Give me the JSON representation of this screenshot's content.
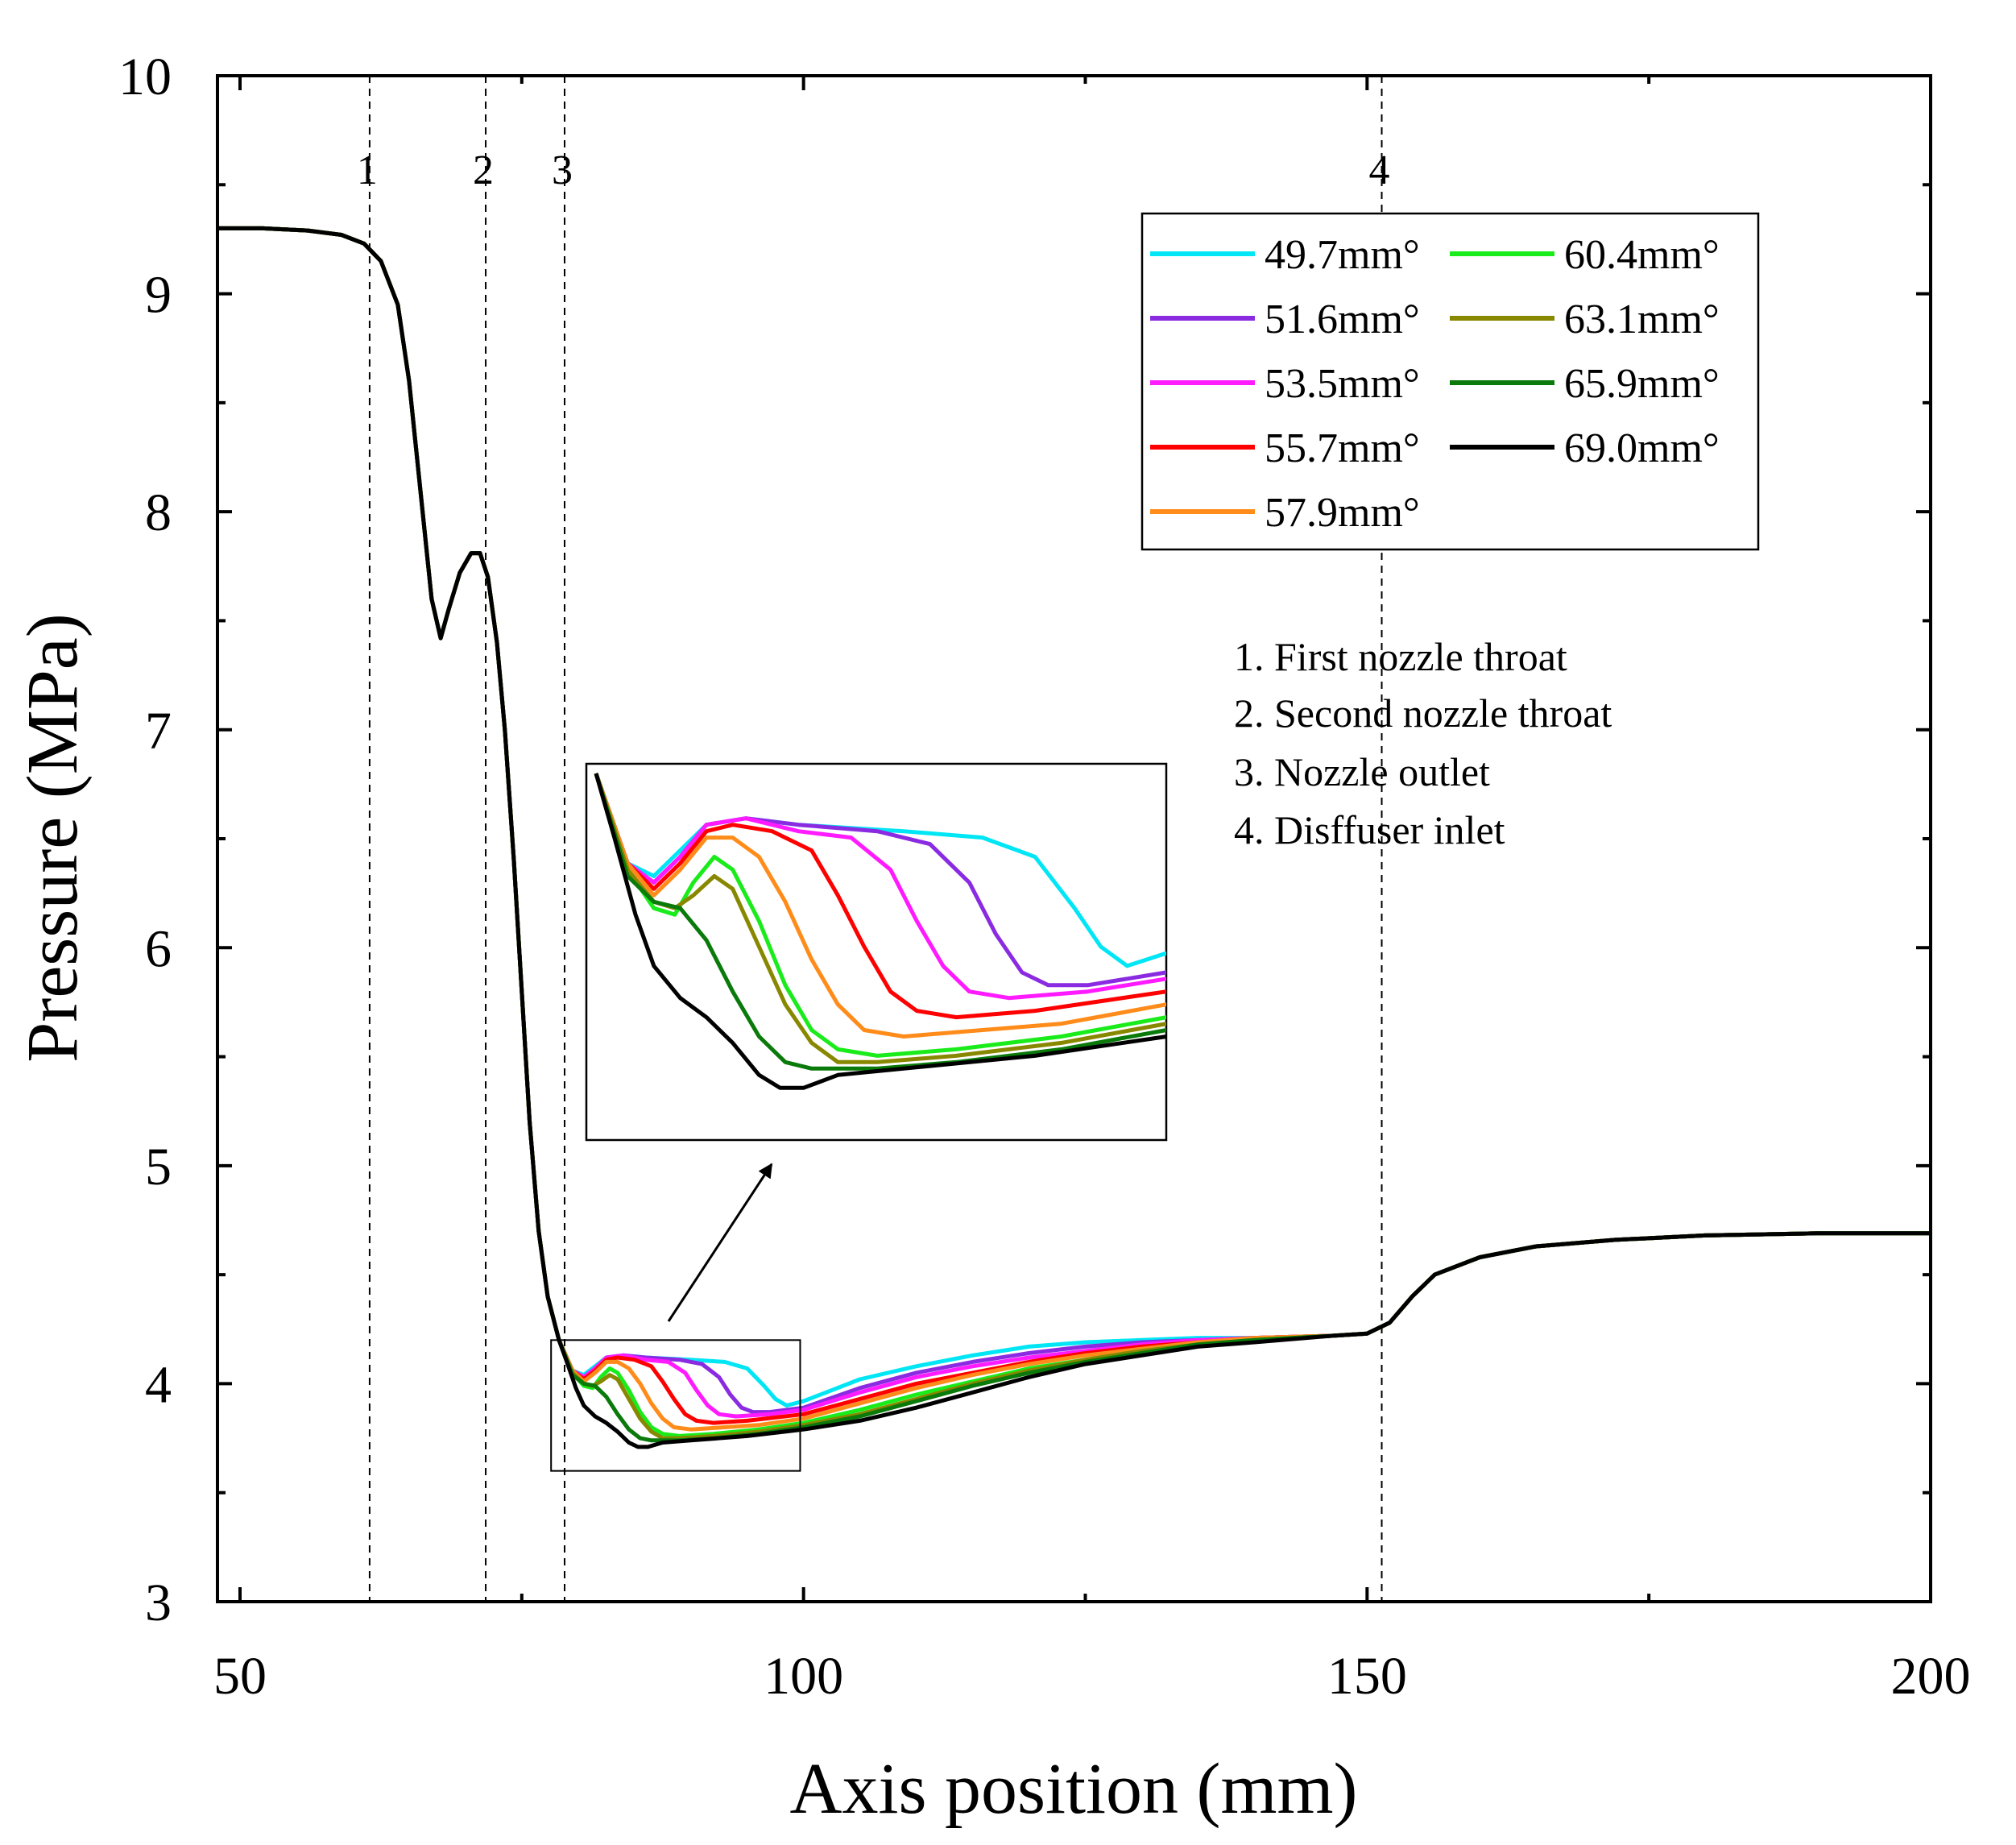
{
  "chart_data": {
    "type": "line",
    "title": "",
    "xlabel": "Axis position (mm)",
    "ylabel": "Pressure (MPa)",
    "xlim": [
      48,
      200
    ],
    "ylim": [
      3,
      10
    ],
    "xticks": [
      50,
      100,
      150,
      200
    ],
    "yticks": [
      3,
      4,
      5,
      6,
      7,
      8,
      9,
      10
    ],
    "grid": false,
    "legend_position": "top-right",
    "common_prefix": [
      [
        48,
        9.3
      ],
      [
        52,
        9.3
      ],
      [
        56,
        9.29
      ],
      [
        59,
        9.27
      ],
      [
        61,
        9.23
      ],
      [
        62.5,
        9.15
      ],
      [
        64,
        8.95
      ],
      [
        65,
        8.6
      ],
      [
        66,
        8.1
      ],
      [
        67,
        7.6
      ],
      [
        67.8,
        7.42
      ],
      [
        68.5,
        7.55
      ],
      [
        69.5,
        7.72
      ],
      [
        70.5,
        7.81
      ],
      [
        71.3,
        7.81
      ],
      [
        72,
        7.7
      ],
      [
        72.8,
        7.4
      ],
      [
        73.5,
        7.0
      ],
      [
        74.3,
        6.4
      ],
      [
        75,
        5.8
      ],
      [
        75.7,
        5.2
      ],
      [
        76.5,
        4.7
      ],
      [
        77.3,
        4.4
      ],
      [
        78.3,
        4.2
      ]
    ],
    "common_suffix": [
      [
        147,
        4.22
      ],
      [
        150,
        4.23
      ],
      [
        152,
        4.28
      ],
      [
        154,
        4.4
      ],
      [
        156,
        4.5
      ],
      [
        160,
        4.58
      ],
      [
        165,
        4.63
      ],
      [
        172,
        4.66
      ],
      [
        180,
        4.68
      ],
      [
        190,
        4.69
      ],
      [
        200,
        4.69
      ]
    ],
    "series": [
      {
        "name": "49.7mm°",
        "color": "#00e6f5",
        "points": [
          [
            78.3,
            4.2
          ],
          [
            79.5,
            4.06
          ],
          [
            80.5,
            4.04
          ],
          [
            81.5,
            4.08
          ],
          [
            82.5,
            4.12
          ],
          [
            84,
            4.13
          ],
          [
            86,
            4.12
          ],
          [
            90,
            4.11
          ],
          [
            93,
            4.1
          ],
          [
            95,
            4.07
          ],
          [
            96.5,
            3.99
          ],
          [
            97.5,
            3.93
          ],
          [
            98.5,
            3.9
          ],
          [
            100,
            3.92
          ],
          [
            105,
            4.02
          ],
          [
            110,
            4.08
          ],
          [
            115,
            4.13
          ],
          [
            120,
            4.17
          ],
          [
            125,
            4.19
          ],
          [
            130,
            4.2
          ],
          [
            135,
            4.21
          ],
          [
            140,
            4.21
          ],
          [
            147,
            4.22
          ]
        ]
      },
      {
        "name": "51.6mm°",
        "color": "#8a2be2",
        "points": [
          [
            78.3,
            4.2
          ],
          [
            79.5,
            4.06
          ],
          [
            80.5,
            4.03
          ],
          [
            81.5,
            4.07
          ],
          [
            82.5,
            4.12
          ],
          [
            84,
            4.13
          ],
          [
            86,
            4.12
          ],
          [
            89,
            4.11
          ],
          [
            91,
            4.09
          ],
          [
            92.5,
            4.03
          ],
          [
            93.5,
            3.95
          ],
          [
            94.5,
            3.89
          ],
          [
            95.5,
            3.87
          ],
          [
            97,
            3.87
          ],
          [
            100,
            3.89
          ],
          [
            105,
            3.98
          ],
          [
            110,
            4.05
          ],
          [
            115,
            4.1
          ],
          [
            120,
            4.14
          ],
          [
            125,
            4.17
          ],
          [
            130,
            4.19
          ],
          [
            135,
            4.2
          ],
          [
            140,
            4.21
          ],
          [
            147,
            4.22
          ]
        ]
      },
      {
        "name": "53.5mm°",
        "color": "#ff1aff",
        "points": [
          [
            78.3,
            4.2
          ],
          [
            79.5,
            4.06
          ],
          [
            80.5,
            4.03
          ],
          [
            81.5,
            4.07
          ],
          [
            82.5,
            4.12
          ],
          [
            84,
            4.13
          ],
          [
            86,
            4.11
          ],
          [
            88,
            4.1
          ],
          [
            89.5,
            4.05
          ],
          [
            90.5,
            3.97
          ],
          [
            91.5,
            3.9
          ],
          [
            92.5,
            3.86
          ],
          [
            94,
            3.85
          ],
          [
            97,
            3.86
          ],
          [
            100,
            3.88
          ],
          [
            105,
            3.96
          ],
          [
            110,
            4.03
          ],
          [
            115,
            4.08
          ],
          [
            120,
            4.12
          ],
          [
            125,
            4.15
          ],
          [
            130,
            4.18
          ],
          [
            135,
            4.2
          ],
          [
            140,
            4.21
          ],
          [
            147,
            4.22
          ]
        ]
      },
      {
        "name": "55.7mm°",
        "color": "#ff0000",
        "points": [
          [
            78.3,
            4.2
          ],
          [
            79.5,
            4.06
          ],
          [
            80.5,
            4.02
          ],
          [
            81.5,
            4.06
          ],
          [
            82.5,
            4.11
          ],
          [
            83.5,
            4.12
          ],
          [
            85,
            4.11
          ],
          [
            86.5,
            4.08
          ],
          [
            87.5,
            4.01
          ],
          [
            88.5,
            3.93
          ],
          [
            89.5,
            3.86
          ],
          [
            90.5,
            3.83
          ],
          [
            92,
            3.82
          ],
          [
            95,
            3.83
          ],
          [
            100,
            3.86
          ],
          [
            105,
            3.93
          ],
          [
            110,
            4.0
          ],
          [
            115,
            4.05
          ],
          [
            120,
            4.1
          ],
          [
            125,
            4.14
          ],
          [
            130,
            4.17
          ],
          [
            135,
            4.19
          ],
          [
            140,
            4.21
          ],
          [
            147,
            4.22
          ]
        ]
      },
      {
        "name": "57.9mm°",
        "color": "#ff8c1a",
        "points": [
          [
            78.3,
            4.2
          ],
          [
            79.5,
            4.06
          ],
          [
            80.5,
            4.01
          ],
          [
            81.5,
            4.05
          ],
          [
            82.5,
            4.1
          ],
          [
            83.5,
            4.1
          ],
          [
            84.5,
            4.07
          ],
          [
            85.5,
            4.0
          ],
          [
            86.5,
            3.91
          ],
          [
            87.5,
            3.84
          ],
          [
            88.5,
            3.8
          ],
          [
            90,
            3.79
          ],
          [
            93,
            3.8
          ],
          [
            96,
            3.81
          ],
          [
            100,
            3.84
          ],
          [
            105,
            3.91
          ],
          [
            110,
            3.98
          ],
          [
            115,
            4.04
          ],
          [
            120,
            4.09
          ],
          [
            125,
            4.13
          ],
          [
            130,
            4.16
          ],
          [
            135,
            4.19
          ],
          [
            140,
            4.21
          ],
          [
            147,
            4.22
          ]
        ]
      },
      {
        "name": "60.4mm°",
        "color": "#1aeb1a",
        "points": [
          [
            78.3,
            4.2
          ],
          [
            79.5,
            4.05
          ],
          [
            80.5,
            3.99
          ],
          [
            81.3,
            3.98
          ],
          [
            82,
            4.03
          ],
          [
            82.8,
            4.07
          ],
          [
            83.5,
            4.05
          ],
          [
            84.5,
            3.97
          ],
          [
            85.5,
            3.87
          ],
          [
            86.5,
            3.8
          ],
          [
            87.5,
            3.77
          ],
          [
            89,
            3.76
          ],
          [
            92,
            3.77
          ],
          [
            96,
            3.79
          ],
          [
            100,
            3.82
          ],
          [
            105,
            3.88
          ],
          [
            110,
            3.95
          ],
          [
            115,
            4.01
          ],
          [
            120,
            4.07
          ],
          [
            125,
            4.11
          ],
          [
            130,
            4.15
          ],
          [
            135,
            4.18
          ],
          [
            140,
            4.2
          ],
          [
            147,
            4.22
          ]
        ]
      },
      {
        "name": "63.1mm°",
        "color": "#888800",
        "points": [
          [
            78.3,
            4.2
          ],
          [
            79.5,
            4.05
          ],
          [
            80.5,
            4.0
          ],
          [
            81.3,
            3.99
          ],
          [
            82,
            4.01
          ],
          [
            82.8,
            4.04
          ],
          [
            83.5,
            4.02
          ],
          [
            84.5,
            3.93
          ],
          [
            85.5,
            3.84
          ],
          [
            86.5,
            3.78
          ],
          [
            87.5,
            3.75
          ],
          [
            89,
            3.75
          ],
          [
            92,
            3.76
          ],
          [
            96,
            3.78
          ],
          [
            100,
            3.81
          ],
          [
            105,
            3.86
          ],
          [
            110,
            3.93
          ],
          [
            115,
            4.0
          ],
          [
            120,
            4.06
          ],
          [
            125,
            4.11
          ],
          [
            130,
            4.15
          ],
          [
            135,
            4.18
          ],
          [
            140,
            4.2
          ],
          [
            147,
            4.22
          ]
        ]
      },
      {
        "name": "65.9mm°",
        "color": "#0a7a0a",
        "points": [
          [
            78.3,
            4.2
          ],
          [
            79.5,
            4.04
          ],
          [
            80.5,
            4.0
          ],
          [
            81.5,
            3.99
          ],
          [
            82.5,
            3.94
          ],
          [
            83.5,
            3.86
          ],
          [
            84.5,
            3.79
          ],
          [
            85.5,
            3.75
          ],
          [
            86.5,
            3.74
          ],
          [
            89,
            3.74
          ],
          [
            92,
            3.75
          ],
          [
            96,
            3.77
          ],
          [
            100,
            3.8
          ],
          [
            105,
            3.85
          ],
          [
            110,
            3.92
          ],
          [
            115,
            3.99
          ],
          [
            120,
            4.05
          ],
          [
            125,
            4.1
          ],
          [
            130,
            4.14
          ],
          [
            135,
            4.18
          ],
          [
            140,
            4.2
          ],
          [
            147,
            4.22
          ]
        ]
      },
      {
        "name": "69.0mm°",
        "color": "#000000",
        "points": [
          [
            78.3,
            4.2
          ],
          [
            79,
            4.1
          ],
          [
            79.8,
            3.98
          ],
          [
            80.5,
            3.9
          ],
          [
            81.5,
            3.85
          ],
          [
            82.5,
            3.82
          ],
          [
            83.5,
            3.78
          ],
          [
            84.5,
            3.73
          ],
          [
            85.3,
            3.71
          ],
          [
            86.2,
            3.71
          ],
          [
            87.5,
            3.73
          ],
          [
            90,
            3.74
          ],
          [
            95,
            3.76
          ],
          [
            100,
            3.79
          ],
          [
            105,
            3.83
          ],
          [
            110,
            3.89
          ],
          [
            115,
            3.96
          ],
          [
            120,
            4.03
          ],
          [
            125,
            4.09
          ],
          [
            130,
            4.13
          ],
          [
            135,
            4.17
          ],
          [
            140,
            4.19
          ],
          [
            147,
            4.22
          ]
        ]
      }
    ],
    "reference_lines": [
      {
        "label": "1",
        "x": 61.5
      },
      {
        "label": "2",
        "x": 71.8
      },
      {
        "label": "3",
        "x": 78.8
      },
      {
        "label": "4",
        "x": 151.3
      }
    ],
    "annotations": [
      "1. First nozzle throat",
      "2. Second nozzle throat",
      "3. Nozzle outlet",
      "4. Disffuser inlet"
    ],
    "inset": {
      "description": "zoom",
      "x_range": [
        78.3,
        99.5
      ],
      "y_range": [
        3.6,
        4.2
      ]
    }
  }
}
